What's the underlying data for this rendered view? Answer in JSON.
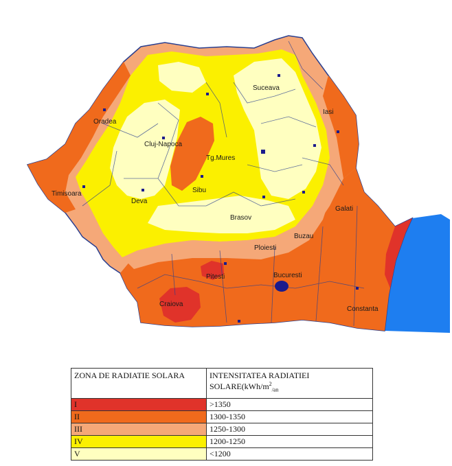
{
  "map": {
    "cities": [
      "Suceava",
      "Iasi",
      "Oradea",
      "Cluj-Napoca",
      "Tg.Mures",
      "Timisoara",
      "Deva",
      "Sibu",
      "Galati",
      "Brasov",
      "Buzau",
      "Ploiesti",
      "Pitesti",
      "Bucuresti",
      "Craiova",
      "Constanta"
    ]
  },
  "legend": {
    "header_zone": "ZONA DE RADIATIE SOLARA",
    "header_intensity_line1": "INTENSITATEA RADIATIEI",
    "header_intensity_line2": "SOLARE(kWh/m",
    "header_intensity_sup": "2",
    "header_intensity_sub": "/an",
    "rows": [
      {
        "zone": "I",
        "value": ">1350",
        "color": "#e0332a"
      },
      {
        "zone": "II",
        "value": "1300-1350",
        "color": "#f06a1c"
      },
      {
        "zone": "III",
        "value": "1250-1300",
        "color": "#f5a878"
      },
      {
        "zone": "IV",
        "value": "1200-1250",
        "color": "#fbf000"
      },
      {
        "zone": "V",
        "value": "<1200",
        "color": "#ffffc0"
      }
    ]
  },
  "colors": {
    "sea": "#1e7ef0",
    "border": "#2a3f8f"
  }
}
